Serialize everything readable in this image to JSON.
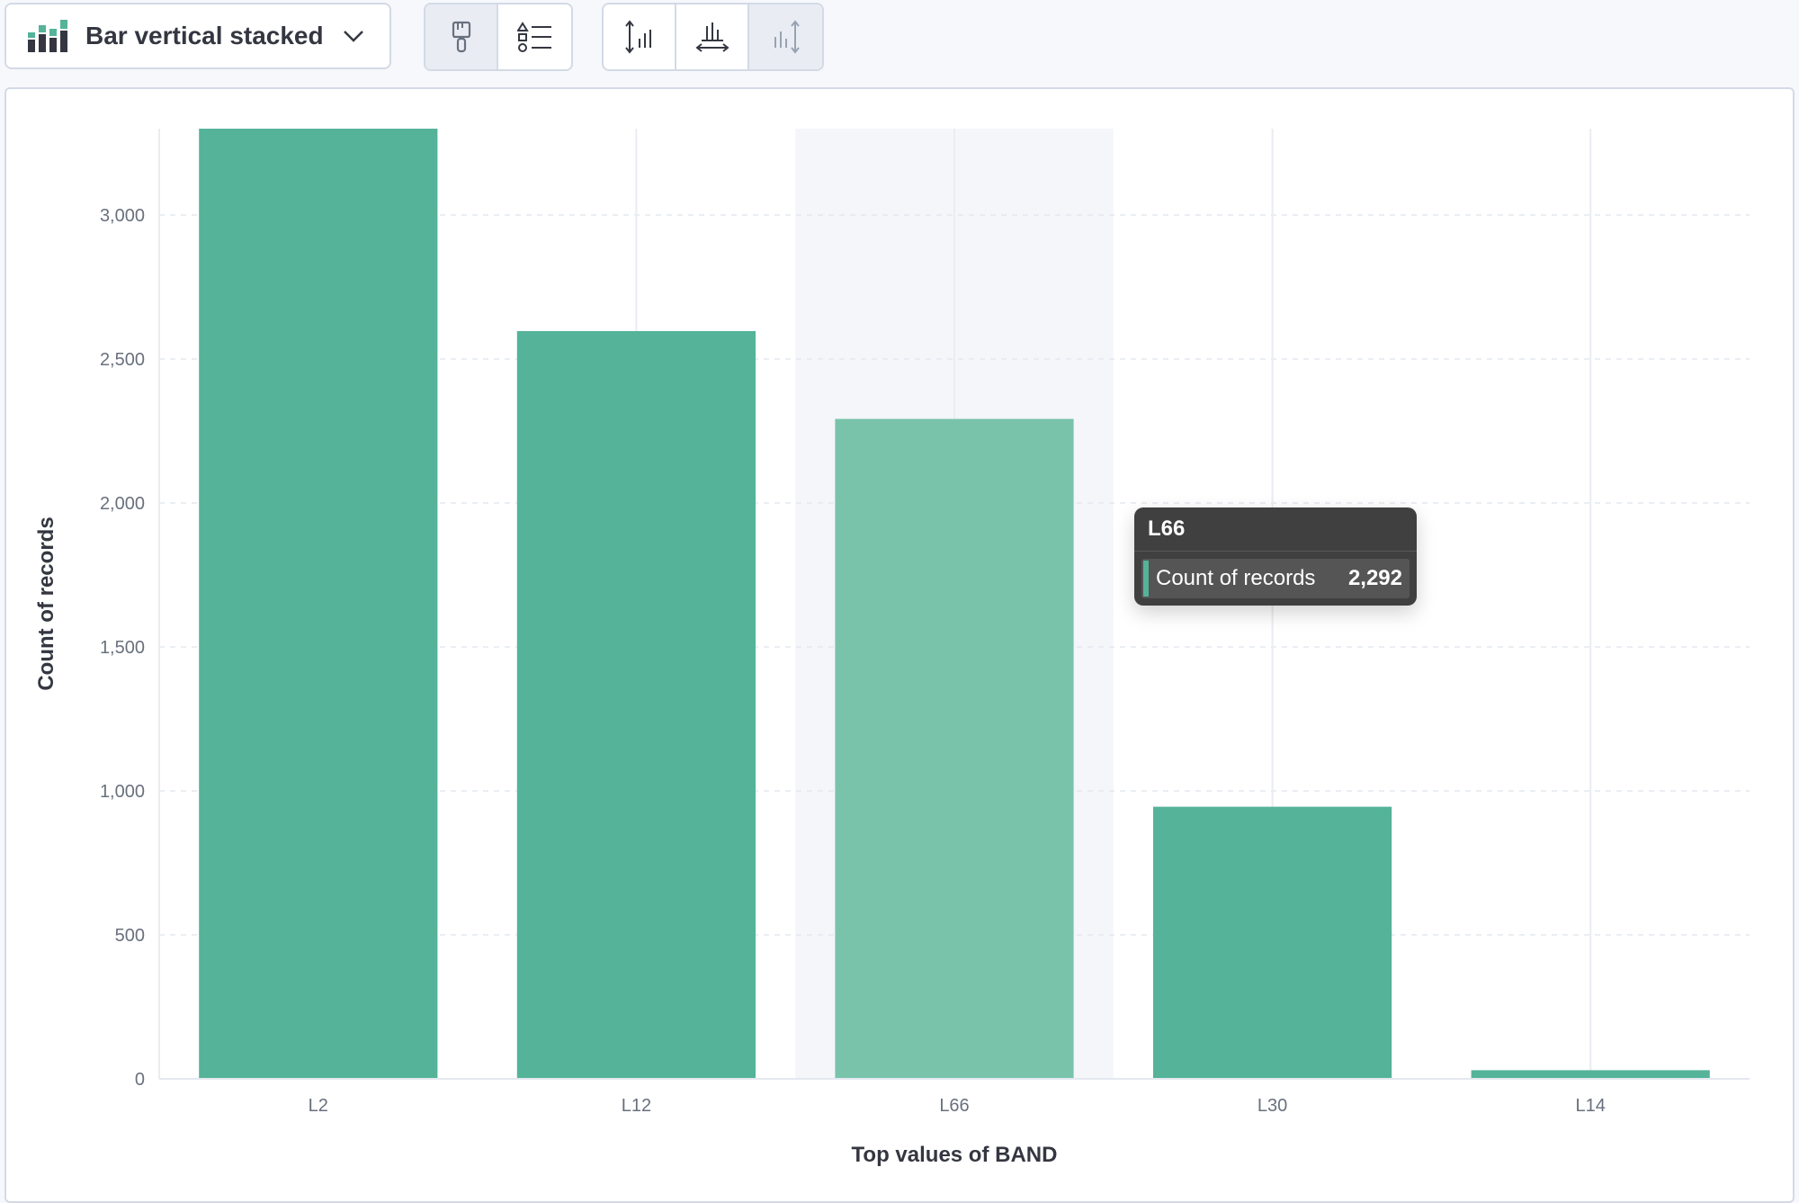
{
  "toolbar": {
    "chart_type_label": "Bar vertical stacked",
    "chart_type_icon": "bar-stacked-icon",
    "group1": [
      {
        "icon": "paintbrush-icon",
        "active": true
      },
      {
        "icon": "legend-list-icon",
        "active": false
      }
    ],
    "group2": [
      {
        "icon": "left-axis-icon",
        "active": false
      },
      {
        "icon": "bottom-axis-icon",
        "active": false
      },
      {
        "icon": "right-axis-icon",
        "active": true
      }
    ]
  },
  "tooltip": {
    "title": "L66",
    "series_label": "Count of records",
    "value": "2,292"
  },
  "colors": {
    "bar": "#54b399",
    "bar_highlight": "#7ac3ab",
    "hover_band": "#f4f6fa"
  },
  "chart_data": {
    "type": "bar",
    "categories": [
      "L2",
      "L12",
      "L66",
      "L30",
      "L14"
    ],
    "values": [
      3300,
      2597,
      2292,
      945,
      30
    ],
    "highlighted_category": "L66",
    "xlabel": "Top values of BAND",
    "ylabel": "Count of records",
    "ylim": [
      0,
      3300
    ],
    "yticks": [
      0,
      500,
      1000,
      1500,
      2000,
      2500,
      3000
    ],
    "ytick_labels": [
      "0",
      "500",
      "1,000",
      "1,500",
      "2,000",
      "2,500",
      "3,000"
    ],
    "grid": true
  }
}
